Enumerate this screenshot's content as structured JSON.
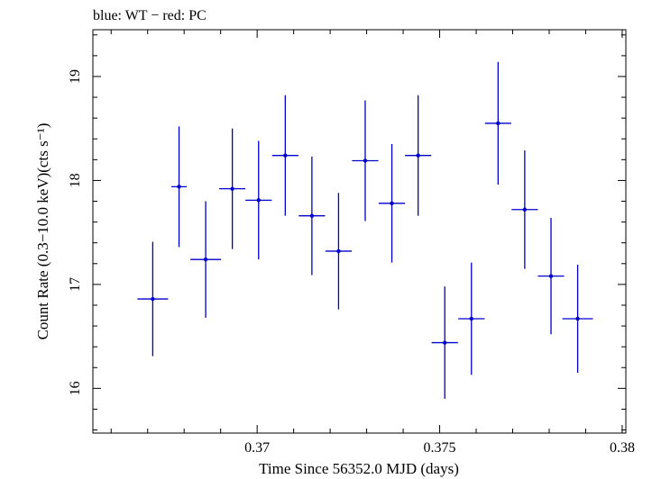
{
  "chart_data": {
    "type": "scatter",
    "title": "blue: WT − red: PC",
    "xlabel": "Time Since 56352.0 MJD (days)",
    "ylabel": "Count Rate (0.3−10.0 keV)(cts s⁻¹)",
    "xlim": [
      0.3655,
      0.3801
    ],
    "ylim": [
      15.57,
      19.45
    ],
    "x_ticks": [
      0.37,
      0.375,
      0.38
    ],
    "x_tick_labels": [
      "0.37",
      "0.375",
      "0.38"
    ],
    "y_ticks": [
      16,
      17,
      18,
      19
    ],
    "y_tick_labels": [
      "16",
      "17",
      "18",
      "19"
    ],
    "grid": false,
    "series": [
      {
        "color": "#0000cc",
        "points": [
          {
            "x": 0.36714,
            "xerr": 0.00042,
            "y": 16.86,
            "yerr": 0.55
          },
          {
            "x": 0.36786,
            "xerr": 0.00021,
            "y": 17.94,
            "yerr": 0.58
          },
          {
            "x": 0.36859,
            "xerr": 0.00042,
            "y": 17.24,
            "yerr": 0.56
          },
          {
            "x": 0.36932,
            "xerr": 0.00036,
            "y": 17.92,
            "yerr": 0.58
          },
          {
            "x": 0.37004,
            "xerr": 0.00036,
            "y": 17.81,
            "yerr": 0.57
          },
          {
            "x": 0.37077,
            "xerr": 0.00036,
            "y": 18.24,
            "yerr": 0.58
          },
          {
            "x": 0.3715,
            "xerr": 0.00036,
            "y": 17.66,
            "yerr": 0.57
          },
          {
            "x": 0.37223,
            "xerr": 0.00036,
            "y": 17.32,
            "yerr": 0.56
          },
          {
            "x": 0.37296,
            "xerr": 0.00036,
            "y": 18.19,
            "yerr": 0.58
          },
          {
            "x": 0.37369,
            "xerr": 0.00036,
            "y": 17.78,
            "yerr": 0.57
          },
          {
            "x": 0.37441,
            "xerr": 0.00036,
            "y": 18.24,
            "yerr": 0.58
          },
          {
            "x": 0.37514,
            "xerr": 0.00036,
            "y": 16.44,
            "yerr": 0.54
          },
          {
            "x": 0.37587,
            "xerr": 0.00036,
            "y": 16.67,
            "yerr": 0.54
          },
          {
            "x": 0.3766,
            "xerr": 0.00036,
            "y": 18.55,
            "yerr": 0.59
          },
          {
            "x": 0.37733,
            "xerr": 0.00036,
            "y": 17.72,
            "yerr": 0.57
          },
          {
            "x": 0.37805,
            "xerr": 0.00036,
            "y": 17.08,
            "yerr": 0.56
          },
          {
            "x": 0.37878,
            "xerr": 0.00042,
            "y": 16.67,
            "yerr": 0.52
          }
        ]
      }
    ]
  }
}
